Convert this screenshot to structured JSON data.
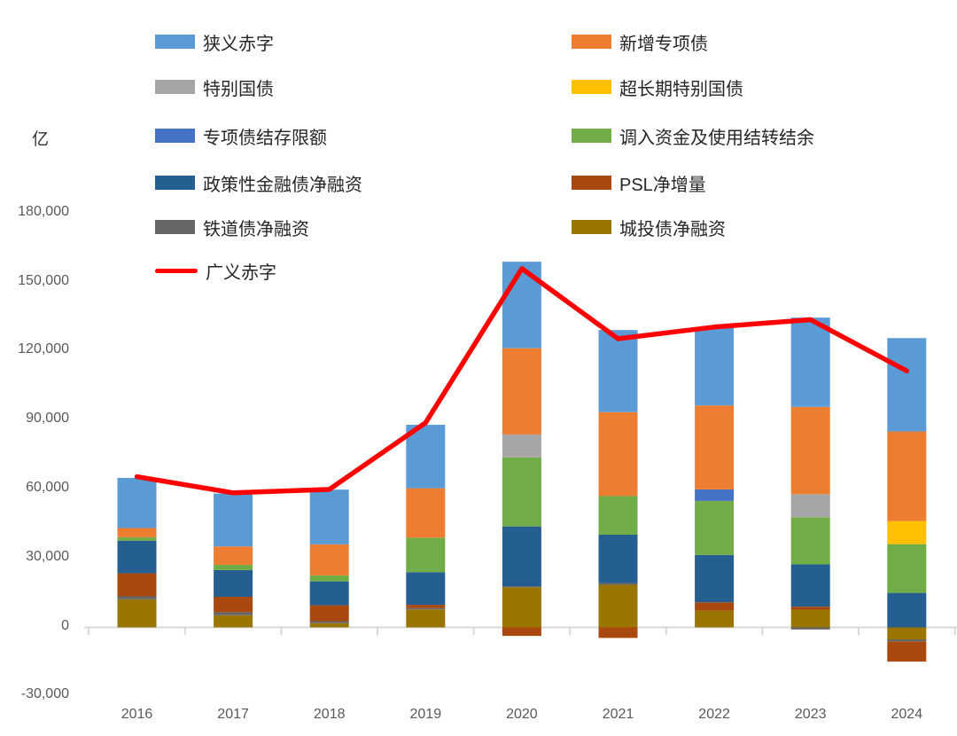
{
  "unit_label": "亿",
  "axes": {
    "y_ticks": [
      180000,
      150000,
      120000,
      90000,
      60000,
      30000,
      0,
      -30000
    ],
    "x_labels": [
      "2016",
      "2017",
      "2018",
      "2019",
      "2020",
      "2021",
      "2022",
      "2023",
      "2024"
    ]
  },
  "legend": {
    "left_column": [
      {
        "label": "狭义赤字",
        "color": "#5B9BD5",
        "swatch": "bar"
      },
      {
        "label": "特别国债",
        "color": "#A6A6A6",
        "swatch": "bar"
      },
      {
        "label": "专项债结存限额",
        "color": "#4472C4",
        "swatch": "bar"
      },
      {
        "label": "政策性金融债净融资",
        "color": "#255E91",
        "swatch": "bar"
      },
      {
        "label": "铁道债净融资",
        "color": "#666666",
        "swatch": "bar"
      },
      {
        "label": "广义赤字",
        "color": "#FF0000",
        "swatch": "line"
      }
    ],
    "right_column": [
      {
        "label": "新增专项债",
        "color": "#ED7D31",
        "swatch": "bar"
      },
      {
        "label": "超长期特别国债",
        "color": "#FFC000",
        "swatch": "bar"
      },
      {
        "label": "调入资金及使用结转结余",
        "color": "#70AD47",
        "swatch": "bar"
      },
      {
        "label": "PSL净增量",
        "color": "#A9480F",
        "swatch": "bar"
      },
      {
        "label": "城投债净融资",
        "color": "#9A7500",
        "swatch": "bar"
      }
    ]
  },
  "chart_data": {
    "type": "bar",
    "subtype": "stacked-bar-with-line",
    "unit": "亿",
    "categories": [
      "2016",
      "2017",
      "2018",
      "2019",
      "2020",
      "2021",
      "2022",
      "2023",
      "2024"
    ],
    "ylim": [
      -30000,
      180000
    ],
    "grid": false,
    "legend_position": "top",
    "stack_order": [
      "城投债净融资",
      "铁道债净融资",
      "PSL净增量",
      "政策性金融债净融资",
      "调入资金及使用结转结余",
      "专项债结存限额",
      "特别国债",
      "超长期特别国债",
      "新增专项债",
      "狭义赤字"
    ],
    "series": [
      {
        "name": "城投债净融资",
        "color": "#9A7500",
        "values": [
          12200,
          5300,
          1800,
          7800,
          17400,
          18500,
          7300,
          7700,
          -5200
        ]
      },
      {
        "name": "铁道债净融资",
        "color": "#666666",
        "values": [
          1300,
          1300,
          900,
          600,
          500,
          800,
          0,
          -900,
          -900
        ]
      },
      {
        "name": "PSL净增量",
        "color": "#A9480F",
        "values": [
          10000,
          6700,
          6900,
          1400,
          -3700,
          -4600,
          3600,
          1300,
          -8800
        ]
      },
      {
        "name": "政策性金融债净融资",
        "color": "#255E91",
        "values": [
          14200,
          11600,
          10400,
          14200,
          26000,
          21000,
          20600,
          18400,
          15000
        ]
      },
      {
        "name": "调入资金及使用结转结余",
        "color": "#70AD47",
        "values": [
          1500,
          2300,
          2600,
          15000,
          30000,
          16800,
          23500,
          20500,
          21200
        ]
      },
      {
        "name": "专项债结存限额",
        "color": "#4472C4",
        "values": [
          0,
          0,
          0,
          0,
          0,
          0,
          5000,
          0,
          0
        ]
      },
      {
        "name": "特别国债",
        "color": "#A6A6A6",
        "values": [
          0,
          0,
          0,
          0,
          10000,
          0,
          0,
          10000,
          0
        ]
      },
      {
        "name": "超长期特别国债",
        "color": "#FFC000",
        "values": [
          0,
          0,
          0,
          0,
          0,
          0,
          0,
          0,
          10000
        ]
      },
      {
        "name": "新增专项债",
        "color": "#ED7D31",
        "values": [
          4000,
          8000,
          13500,
          21500,
          37500,
          36500,
          36500,
          38000,
          39000
        ]
      },
      {
        "name": "狭义赤字",
        "color": "#5B9BD5",
        "values": [
          21800,
          23000,
          23800,
          27600,
          37600,
          35700,
          33700,
          38800,
          40600
        ]
      }
    ],
    "line_series": {
      "name": "广义赤字",
      "color": "#FF0000",
      "values": [
        65500,
        58500,
        60000,
        89000,
        156000,
        125500,
        130600,
        133800,
        111500
      ]
    }
  }
}
